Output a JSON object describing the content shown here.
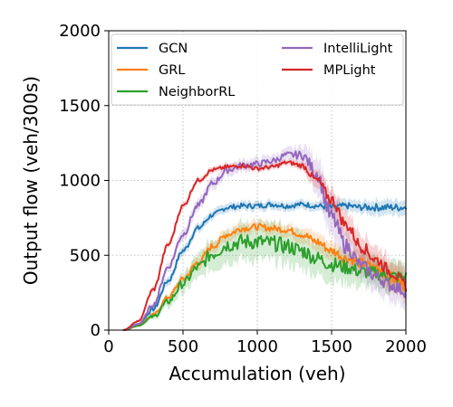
{
  "chart_data": {
    "type": "line",
    "title": "",
    "xlabel": "Accumulation (veh)",
    "ylabel": "Output flow (veh/300s)",
    "xlim": [
      0,
      2000
    ],
    "ylim": [
      0,
      2000
    ],
    "xticks": [
      0,
      500,
      1000,
      1500,
      2000
    ],
    "yticks": [
      0,
      500,
      1000,
      1500,
      2000
    ],
    "grid": true,
    "legend": {
      "placement": "top",
      "columns": 2
    },
    "series": [
      {
        "name": "GCN",
        "color": "#1f77b4",
        "x": [
          100,
          200,
          300,
          400,
          500,
          600,
          700,
          800,
          900,
          1000,
          1100,
          1200,
          1300,
          1400,
          1500,
          1600,
          1700,
          1800,
          1900,
          2000
        ],
        "y": [
          0,
          40,
          140,
          330,
          530,
          680,
          770,
          820,
          830,
          830,
          840,
          830,
          840,
          830,
          820,
          830,
          820,
          820,
          820,
          820
        ],
        "spread": [
          0,
          10,
          20,
          30,
          30,
          30,
          30,
          30,
          30,
          30,
          30,
          30,
          30,
          30,
          40,
          40,
          40,
          50,
          50,
          50
        ]
      },
      {
        "name": "GRL",
        "color": "#ff7f0e",
        "x": [
          100,
          200,
          300,
          400,
          500,
          600,
          700,
          800,
          900,
          1000,
          1100,
          1200,
          1300,
          1400,
          1500,
          1600,
          1700,
          1800,
          1900,
          2000
        ],
        "y": [
          0,
          30,
          100,
          220,
          340,
          450,
          560,
          640,
          680,
          690,
          680,
          670,
          640,
          590,
          530,
          480,
          450,
          410,
          350,
          300
        ],
        "spread": [
          0,
          10,
          15,
          20,
          30,
          40,
          40,
          40,
          40,
          40,
          40,
          40,
          50,
          60,
          60,
          70,
          70,
          80,
          90,
          90
        ]
      },
      {
        "name": "NeighborRL",
        "color": "#2ca02c",
        "x": [
          100,
          200,
          300,
          400,
          500,
          600,
          700,
          800,
          900,
          1000,
          1100,
          1200,
          1300,
          1400,
          1500,
          1600,
          1700,
          1800,
          1900,
          2000
        ],
        "y": [
          0,
          30,
          90,
          190,
          310,
          420,
          510,
          570,
          590,
          590,
          580,
          560,
          530,
          480,
          440,
          420,
          390,
          380,
          360,
          350
        ],
        "spread": [
          0,
          10,
          20,
          40,
          60,
          80,
          100,
          110,
          120,
          120,
          120,
          120,
          120,
          110,
          110,
          110,
          100,
          100,
          100,
          100
        ]
      },
      {
        "name": "IntelliLight",
        "color": "#9467bd",
        "x": [
          100,
          200,
          300,
          400,
          500,
          600,
          700,
          800,
          900,
          1000,
          1100,
          1200,
          1300,
          1400,
          1500,
          1600,
          1700,
          1800,
          1900,
          2000
        ],
        "y": [
          0,
          40,
          170,
          420,
          640,
          830,
          980,
          1070,
          1100,
          1110,
          1130,
          1170,
          1170,
          1050,
          750,
          560,
          430,
          360,
          300,
          260
        ],
        "spread": [
          0,
          10,
          20,
          30,
          40,
          40,
          40,
          40,
          40,
          40,
          40,
          40,
          60,
          120,
          140,
          120,
          100,
          100,
          100,
          90
        ]
      },
      {
        "name": "MPLight",
        "color": "#d62728",
        "x": [
          100,
          200,
          300,
          400,
          500,
          600,
          700,
          800,
          900,
          1000,
          1100,
          1200,
          1300,
          1400,
          1500,
          1600,
          1700,
          1800,
          1900,
          2000
        ],
        "y": [
          0,
          60,
          270,
          570,
          830,
          1000,
          1070,
          1090,
          1100,
          1080,
          1090,
          1120,
          1100,
          1000,
          870,
          700,
          560,
          470,
          390,
          300
        ],
        "spread": [
          0,
          10,
          20,
          20,
          20,
          20,
          20,
          20,
          20,
          20,
          20,
          20,
          30,
          60,
          80,
          90,
          90,
          90,
          90,
          90
        ]
      }
    ]
  }
}
